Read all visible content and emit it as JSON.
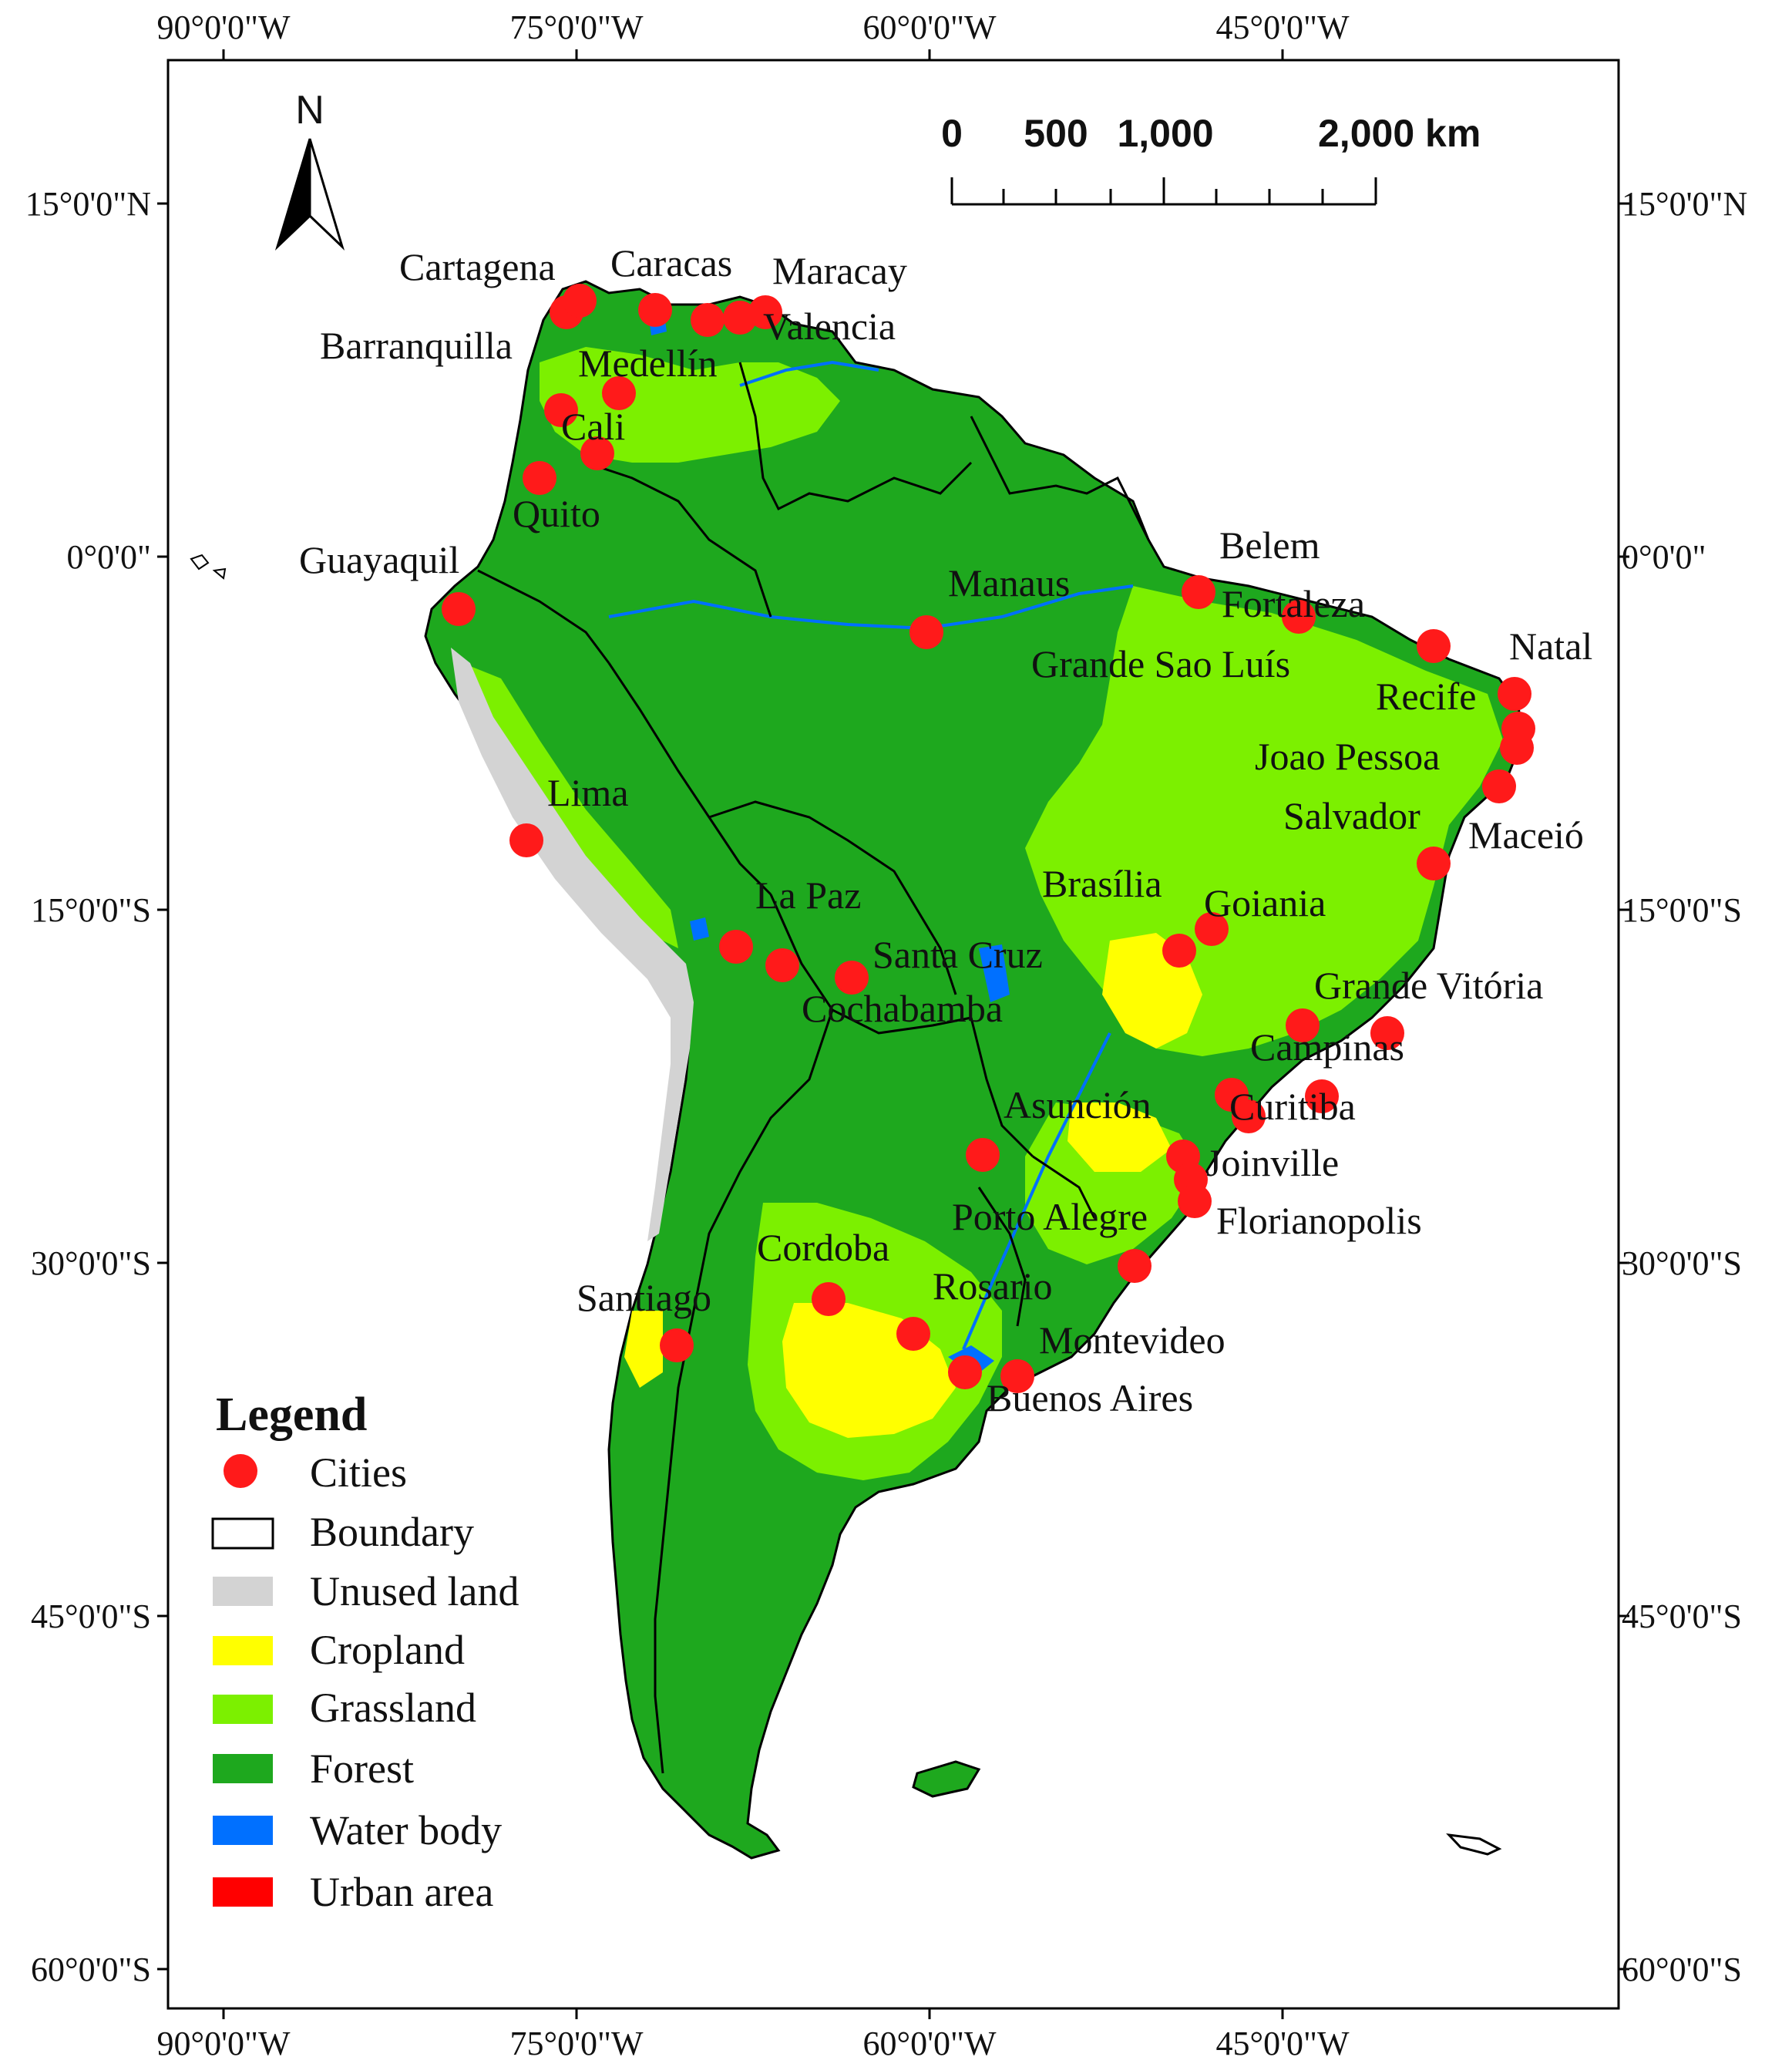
{
  "axes": {
    "top": [
      "90°0'0\"W",
      "75°0'0\"W",
      "60°0'0\"W",
      "45°0'0\"W"
    ],
    "bottom": [
      "90°0'0\"W",
      "75°0'0\"W",
      "60°0'0\"W",
      "45°0'0\"W"
    ],
    "left": [
      "15°0'0\"N",
      "0°0'0\"",
      "15°0'0\"S",
      "30°0'0\"S",
      "45°0'0\"S",
      "60°0'0\"S"
    ],
    "right": [
      "15°0'0\"N",
      "0°0'0\"",
      "15°0'0\"S",
      "30°0'0\"S",
      "45°0'0\"S",
      "60°0'0\"S"
    ]
  },
  "north_arrow": {
    "label": "N"
  },
  "scale_bar": {
    "labels": [
      "0",
      "500",
      "1,000",
      "2,000 km"
    ]
  },
  "legend": {
    "title": "Legend",
    "items": [
      {
        "label": "Cities",
        "symbol": "dot",
        "color": "#ff1a1a"
      },
      {
        "label": "Boundary",
        "symbol": "outline",
        "color": "#000000"
      },
      {
        "label": "Unused land",
        "symbol": "fill",
        "color": "#d3d3d3"
      },
      {
        "label": "Cropland",
        "symbol": "fill",
        "color": "#ffff00"
      },
      {
        "label": "Grassland",
        "symbol": "fill",
        "color": "#7cf000"
      },
      {
        "label": "Forest",
        "symbol": "fill",
        "color": "#1ea81e"
      },
      {
        "label": "Water body",
        "symbol": "fill",
        "color": "#0070ff"
      },
      {
        "label": "Urban area",
        "symbol": "fill",
        "color": "#ff0000"
      }
    ]
  },
  "cities": [
    "Cartagena",
    "Caracas",
    "Maracay",
    "Barranquilla",
    "Valencia",
    "Medellín",
    "Cali",
    "Quito",
    "Guayaquil",
    "Belem",
    "Manaus",
    "Fortaleza",
    "Grande Sao Luís",
    "Natal",
    "Recife",
    "Joao Pessoa",
    "Salvador",
    "Maceió",
    "Lima",
    "La Paz",
    "Brasília",
    "Goiania",
    "Santa Cruz",
    "Cochabamba",
    "Grande Vitória",
    "Campinas",
    "Asunción",
    "Curitiba",
    "Joinville",
    "Porto Alegre",
    "Florianopolis",
    "Cordoba",
    "Rosario",
    "Santiago",
    "Montevideo",
    "Buenos Aires"
  ],
  "colors": {
    "forest": "#1ea81e",
    "forest_dark": "#17901a",
    "grassland": "#7cf000",
    "cropland": "#ffff00",
    "unused": "#d3d3d3",
    "water": "#0070ff",
    "city": "#ff1a1a",
    "boundary": "#000000"
  }
}
